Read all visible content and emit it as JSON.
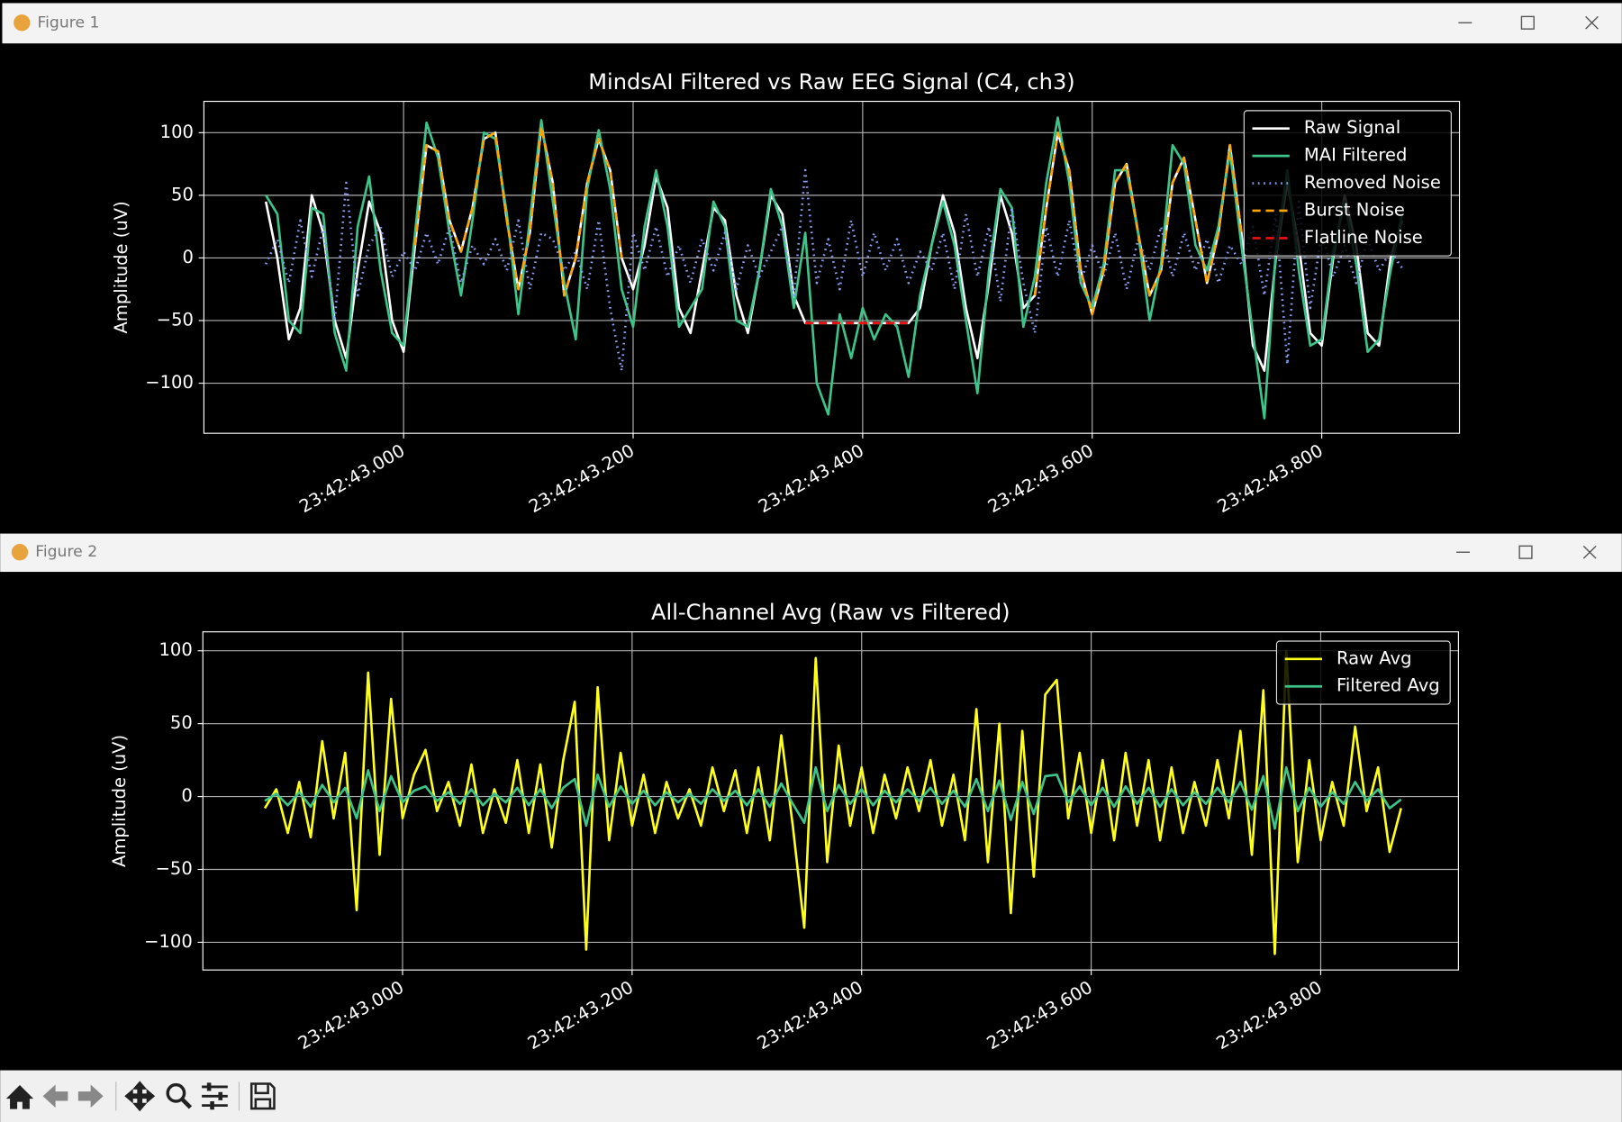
{
  "windows": [
    {
      "title": "Figure 1"
    },
    {
      "title": "Figure 2"
    }
  ],
  "chart_data": [
    {
      "type": "line",
      "title": "MindsAI Filtered vs Raw EEG Signal (C4, ch3)",
      "y_label": "Amplitude (uV)",
      "grid": true,
      "legend": "upper right",
      "xlim": [
        42.826,
        43.92
      ],
      "ylim": [
        -140,
        125
      ],
      "xticks": [
        {
          "value": 43,
          "label": "23:42:43.000"
        },
        {
          "value": 43.2,
          "label": "23:42:43.200"
        },
        {
          "value": 43.4,
          "label": "23:42:43.400"
        },
        {
          "value": 43.6,
          "label": "23:42:43.600"
        },
        {
          "value": 43.8,
          "label": "23:42:43.800"
        }
      ],
      "yticks": [
        {
          "value": -100,
          "label": "−100"
        },
        {
          "value": -50,
          "label": "−50"
        },
        0,
        50,
        100
      ],
      "x": [
        42.88,
        42.89,
        42.9,
        42.91,
        42.92,
        42.93,
        42.94,
        42.95,
        42.96,
        42.97,
        42.98,
        42.99,
        43,
        43.01,
        43.02,
        43.03,
        43.04,
        43.05,
        43.06,
        43.07,
        43.08,
        43.09,
        43.1,
        43.11,
        43.12,
        43.13,
        43.14,
        43.15,
        43.16,
        43.17,
        43.18,
        43.19,
        43.2,
        43.21,
        43.22,
        43.23,
        43.24,
        43.25,
        43.26,
        43.27,
        43.28,
        43.29,
        43.3,
        43.31,
        43.32,
        43.33,
        43.34,
        43.35,
        43.36,
        43.37,
        43.38,
        43.39,
        43.4,
        43.41,
        43.42,
        43.43,
        43.44,
        43.45,
        43.46,
        43.47,
        43.48,
        43.49,
        43.5,
        43.51,
        43.52,
        43.53,
        43.54,
        43.55,
        43.56,
        43.57,
        43.58,
        43.59,
        43.6,
        43.61,
        43.62,
        43.63,
        43.64,
        43.65,
        43.66,
        43.67,
        43.68,
        43.69,
        43.7,
        43.71,
        43.72,
        43.73,
        43.74,
        43.75,
        43.76,
        43.77,
        43.78,
        43.79,
        43.8,
        43.81,
        43.82,
        43.83,
        43.84,
        43.85,
        43.86,
        43.87
      ],
      "series": [
        {
          "name": "Raw Signal",
          "color": "#ffffff",
          "style": "solid",
          "values": [
            45,
            0,
            -65,
            -40,
            50,
            20,
            -50,
            -80,
            -10,
            45,
            20,
            -50,
            -75,
            10,
            90,
            85,
            30,
            5,
            40,
            95,
            100,
            30,
            -25,
            20,
            105,
            60,
            -30,
            0,
            60,
            95,
            70,
            0,
            -25,
            10,
            65,
            40,
            -40,
            -60,
            -10,
            40,
            30,
            -30,
            -60,
            -10,
            50,
            35,
            -30,
            -52,
            -52,
            -52,
            -52,
            -52,
            -52,
            -52,
            -52,
            -52,
            -52,
            -40,
            10,
            50,
            20,
            -40,
            -80,
            -20,
            50,
            20,
            -40,
            -30,
            40,
            100,
            70,
            -10,
            -45,
            -10,
            60,
            75,
            20,
            -30,
            -10,
            60,
            80,
            30,
            -20,
            20,
            90,
            20,
            -70,
            -90,
            0,
            60,
            10,
            -60,
            -70,
            0,
            50,
            10,
            -60,
            -70,
            0,
            30
          ]
        },
        {
          "name": "MAI Filtered",
          "color": "#3dc48a",
          "style": "solid",
          "values": [
            50,
            35,
            -50,
            -60,
            40,
            35,
            -60,
            -90,
            25,
            65,
            -10,
            -60,
            -70,
            20,
            108,
            80,
            20,
            -30,
            30,
            100,
            95,
            35,
            -45,
            30,
            110,
            45,
            -20,
            -65,
            55,
            102,
            55,
            -25,
            -55,
            25,
            70,
            25,
            -55,
            -40,
            -25,
            45,
            25,
            -50,
            -55,
            -10,
            55,
            25,
            -40,
            20,
            -100,
            -125,
            -45,
            -80,
            -40,
            -65,
            -45,
            -55,
            -95,
            -30,
            10,
            45,
            10,
            -50,
            -108,
            -10,
            55,
            40,
            -55,
            -15,
            60,
            112,
            60,
            -20,
            -40,
            -5,
            70,
            70,
            20,
            -50,
            -5,
            90,
            75,
            10,
            -10,
            25,
            85,
            10,
            -60,
            -128,
            5,
            70,
            -10,
            -70,
            -65,
            5,
            45,
            -5,
            -75,
            -65,
            -10,
            35
          ]
        },
        {
          "name": "Removed Noise",
          "color": "#8c9cf0",
          "style": "dotted",
          "values": [
            -5,
            15,
            -20,
            30,
            -15,
            25,
            -50,
            60,
            -30,
            10,
            25,
            -15,
            5,
            -10,
            20,
            -5,
            25,
            -20,
            10,
            -5,
            15,
            -10,
            30,
            -25,
            20,
            15,
            -10,
            5,
            -25,
            30,
            -40,
            -90,
            20,
            -10,
            25,
            -15,
            10,
            -20,
            15,
            -10,
            20,
            -25,
            10,
            -15,
            5,
            25,
            -30,
            70,
            -20,
            15,
            -25,
            30,
            -15,
            20,
            -10,
            15,
            -20,
            5,
            -10,
            20,
            -25,
            35,
            -15,
            25,
            -35,
            40,
            -20,
            -60,
            25,
            -15,
            30,
            -20,
            10,
            -15,
            20,
            -25,
            15,
            -10,
            25,
            -15,
            20,
            -10,
            15,
            -20,
            10,
            -5,
            25,
            -30,
            35,
            -85,
            45,
            -40,
            20,
            -15,
            10,
            -20,
            15,
            -10,
            5,
            -8
          ]
        },
        {
          "name": "Burst Noise",
          "color": "#ffa500",
          "style": "dashed",
          "values": [
            null,
            null,
            null,
            null,
            null,
            null,
            null,
            null,
            null,
            null,
            null,
            null,
            null,
            10,
            90,
            85,
            30,
            5,
            40,
            95,
            100,
            30,
            -25,
            20,
            105,
            60,
            -30,
            0,
            60,
            95,
            70,
            0,
            null,
            null,
            null,
            null,
            null,
            null,
            null,
            null,
            null,
            null,
            null,
            null,
            null,
            null,
            null,
            null,
            null,
            null,
            null,
            null,
            null,
            null,
            null,
            null,
            null,
            null,
            null,
            null,
            null,
            null,
            null,
            null,
            null,
            null,
            null,
            -30,
            40,
            100,
            70,
            -10,
            -45,
            -10,
            60,
            75,
            20,
            -30,
            -10,
            60,
            80,
            30,
            -20,
            20,
            90,
            20,
            null,
            null,
            null,
            null,
            null,
            null,
            null,
            null,
            null,
            null,
            null,
            null,
            null,
            null
          ]
        },
        {
          "name": "Flatline Noise",
          "color": "#ee1111",
          "style": "dashed",
          "values": [
            null,
            null,
            null,
            null,
            null,
            null,
            null,
            null,
            null,
            null,
            null,
            null,
            null,
            null,
            null,
            null,
            null,
            null,
            null,
            null,
            null,
            null,
            null,
            null,
            null,
            null,
            null,
            null,
            null,
            null,
            null,
            null,
            null,
            null,
            null,
            null,
            null,
            null,
            null,
            null,
            null,
            null,
            null,
            null,
            null,
            null,
            null,
            -52,
            -52,
            -52,
            -52,
            -52,
            -52,
            -52,
            -52,
            -52,
            -52,
            null,
            null,
            null,
            null,
            null,
            null,
            null,
            null,
            null,
            null,
            null,
            null,
            null,
            null,
            null,
            null,
            null,
            null,
            null,
            null,
            null,
            null,
            null,
            null,
            null,
            null,
            null,
            null,
            null,
            null,
            null,
            null,
            null,
            null,
            null,
            null,
            null,
            null,
            null,
            null,
            null,
            null,
            null
          ]
        }
      ]
    },
    {
      "type": "line",
      "title": "All-Channel Avg (Raw vs Filtered)",
      "y_label": "Amplitude (uV)",
      "grid": true,
      "legend": "upper right",
      "xlim": [
        42.826,
        43.92
      ],
      "ylim": [
        -119,
        113
      ],
      "xticks": [
        {
          "value": 43,
          "label": "23:42:43.000"
        },
        {
          "value": 43.2,
          "label": "23:42:43.200"
        },
        {
          "value": 43.4,
          "label": "23:42:43.400"
        },
        {
          "value": 43.6,
          "label": "23:42:43.600"
        },
        {
          "value": 43.8,
          "label": "23:42:43.800"
        }
      ],
      "yticks": [
        {
          "value": -100,
          "label": "−100"
        },
        {
          "value": -50,
          "label": "−50"
        },
        0,
        50,
        100
      ],
      "x": [
        42.88,
        42.89,
        42.9,
        42.91,
        42.92,
        42.93,
        42.94,
        42.95,
        42.96,
        42.97,
        42.98,
        42.99,
        43,
        43.01,
        43.02,
        43.03,
        43.04,
        43.05,
        43.06,
        43.07,
        43.08,
        43.09,
        43.1,
        43.11,
        43.12,
        43.13,
        43.14,
        43.15,
        43.16,
        43.17,
        43.18,
        43.19,
        43.2,
        43.21,
        43.22,
        43.23,
        43.24,
        43.25,
        43.26,
        43.27,
        43.28,
        43.29,
        43.3,
        43.31,
        43.32,
        43.33,
        43.34,
        43.35,
        43.36,
        43.37,
        43.38,
        43.39,
        43.4,
        43.41,
        43.42,
        43.43,
        43.44,
        43.45,
        43.46,
        43.47,
        43.48,
        43.49,
        43.5,
        43.51,
        43.52,
        43.53,
        43.54,
        43.55,
        43.56,
        43.57,
        43.58,
        43.59,
        43.6,
        43.61,
        43.62,
        43.63,
        43.64,
        43.65,
        43.66,
        43.67,
        43.68,
        43.69,
        43.7,
        43.71,
        43.72,
        43.73,
        43.74,
        43.75,
        43.76,
        43.77,
        43.78,
        43.79,
        43.8,
        43.81,
        43.82,
        43.83,
        43.84,
        43.85,
        43.86,
        43.87
      ],
      "series": [
        {
          "name": "Raw Avg",
          "color": "#ffff1a",
          "style": "solid",
          "values": [
            -8,
            5,
            -25,
            10,
            -28,
            38,
            -15,
            30,
            -78,
            85,
            -40,
            67,
            -15,
            15,
            32,
            -10,
            10,
            -20,
            22,
            -25,
            5,
            -18,
            25,
            -25,
            22,
            -35,
            25,
            65,
            -105,
            75,
            -30,
            30,
            -20,
            15,
            -25,
            10,
            -15,
            5,
            -20,
            20,
            -10,
            18,
            -25,
            20,
            -30,
            42,
            -20,
            -90,
            95,
            -45,
            35,
            -20,
            20,
            -25,
            15,
            -15,
            20,
            -10,
            25,
            -20,
            15,
            -30,
            60,
            -45,
            50,
            -80,
            45,
            -55,
            70,
            80,
            -15,
            30,
            -25,
            25,
            -30,
            30,
            -20,
            25,
            -30,
            20,
            -25,
            10,
            -20,
            25,
            -15,
            45,
            -40,
            73,
            -108,
            100,
            -45,
            25,
            -30,
            10,
            -20,
            48,
            -10,
            20,
            -38,
            -8
          ]
        },
        {
          "name": "Filtered Avg",
          "color": "#3dc48a",
          "style": "solid",
          "values": [
            -3,
            2,
            -6,
            3,
            -7,
            8,
            -4,
            6,
            -15,
            18,
            -10,
            14,
            -4,
            4,
            7,
            -3,
            3,
            -5,
            5,
            -6,
            2,
            -4,
            6,
            -6,
            5,
            -8,
            6,
            12,
            -20,
            15,
            -7,
            7,
            -5,
            4,
            -6,
            3,
            -4,
            2,
            -5,
            5,
            -3,
            4,
            -6,
            5,
            -7,
            9,
            -5,
            -18,
            20,
            -10,
            8,
            -5,
            5,
            -6,
            4,
            -4,
            5,
            -3,
            6,
            -5,
            4,
            -7,
            12,
            -10,
            11,
            -16,
            10,
            -12,
            14,
            15,
            -4,
            7,
            -6,
            6,
            -7,
            7,
            -5,
            6,
            -7,
            5,
            -6,
            3,
            -5,
            6,
            -4,
            10,
            -9,
            14,
            -22,
            20,
            -10,
            6,
            -7,
            3,
            -5,
            10,
            -3,
            5,
            -8,
            -2
          ]
        }
      ]
    }
  ]
}
